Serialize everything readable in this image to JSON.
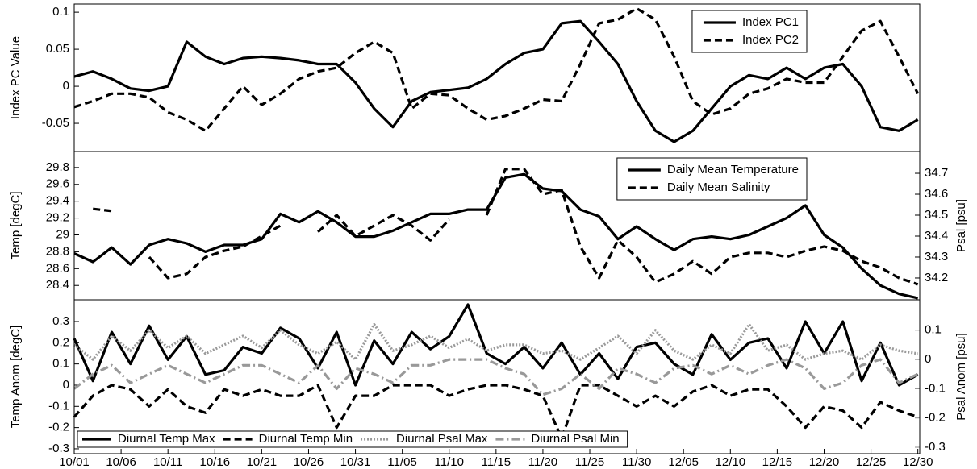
{
  "chart_data": [
    {
      "type": "line",
      "ylabel": "Index PC Value",
      "x": [
        0,
        2,
        4,
        6,
        8,
        10,
        12,
        14,
        16,
        18,
        20,
        22,
        24,
        26,
        28,
        30,
        32,
        34,
        36,
        38,
        40,
        42,
        44,
        46,
        48,
        50,
        52,
        54,
        56,
        58,
        60,
        62,
        64,
        66,
        68,
        70,
        72,
        74,
        76,
        78,
        80,
        82,
        84,
        86,
        88,
        90
      ],
      "xlim": [
        0,
        90.2
      ],
      "ylim": [
        -0.088,
        0.111
      ],
      "yticks": [
        -0.05,
        0,
        0.05,
        0.1
      ],
      "legend": "upper right",
      "series": [
        {
          "name": "Index PC1",
          "color": "#000000",
          "dash": "solid",
          "values": [
            0.013,
            0.02,
            0.01,
            -0.003,
            -0.006,
            0,
            0.06,
            0.04,
            0.03,
            0.038,
            0.04,
            0.038,
            0.035,
            0.03,
            0.03,
            0.005,
            -0.03,
            -0.055,
            -0.02,
            -0.008,
            -0.005,
            -0.002,
            0.01,
            0.03,
            0.045,
            0.05,
            0.085,
            0.088,
            0.06,
            0.03,
            -0.02,
            -0.06,
            -0.075,
            -0.06,
            -0.03,
            0,
            0.015,
            0.01,
            0.025,
            0.01,
            0.025,
            0.03,
            0,
            -0.055,
            -0.06,
            -0.045
          ]
        },
        {
          "name": "Index PC2",
          "color": "#000000",
          "dash": "dashed",
          "values": [
            -0.028,
            -0.02,
            -0.01,
            -0.01,
            -0.015,
            -0.035,
            -0.045,
            -0.06,
            -0.03,
            0,
            -0.025,
            -0.01,
            0.01,
            0.02,
            0.025,
            0.045,
            0.06,
            0.045,
            -0.03,
            -0.01,
            -0.012,
            -0.03,
            -0.045,
            -0.04,
            -0.03,
            -0.018,
            -0.02,
            0.03,
            0.085,
            0.09,
            0.105,
            0.09,
            0.04,
            -0.02,
            -0.038,
            -0.03,
            -0.01,
            -0.003,
            0.01,
            0.005,
            0.005,
            0.04,
            0.075,
            0.088,
            0.04,
            -0.01
          ]
        }
      ]
    },
    {
      "type": "line",
      "ylabel": "Temp [degC]",
      "y2label": "Psal [psu]",
      "x": [
        0,
        2,
        4,
        6,
        8,
        10,
        12,
        14,
        16,
        18,
        20,
        22,
        24,
        26,
        28,
        30,
        32,
        34,
        36,
        38,
        40,
        42,
        44,
        46,
        48,
        50,
        52,
        54,
        56,
        58,
        60,
        62,
        64,
        66,
        68,
        70,
        72,
        74,
        76,
        78,
        80,
        82,
        84,
        86,
        88,
        90
      ],
      "xlim": [
        0,
        90.2
      ],
      "ylim": [
        28.23,
        29.99
      ],
      "yticks": [
        28.4,
        28.6,
        28.8,
        29,
        29.2,
        29.4,
        29.6,
        29.8
      ],
      "y2lim": [
        34.096,
        34.804
      ],
      "y2ticks": [
        34.2,
        34.3,
        34.4,
        34.5,
        34.6,
        34.7
      ],
      "legend": "upper right",
      "series": [
        {
          "name": "Daily Mean Temperature",
          "color": "#000000",
          "dash": "solid",
          "values": [
            28.78,
            28.68,
            28.85,
            28.65,
            28.88,
            28.95,
            28.9,
            28.8,
            28.88,
            28.88,
            28.95,
            29.25,
            29.15,
            29.28,
            29.15,
            28.98,
            28.98,
            29.05,
            29.15,
            29.25,
            29.25,
            29.3,
            29.3,
            29.68,
            29.72,
            29.55,
            29.52,
            29.3,
            29.22,
            28.95,
            29.1,
            28.95,
            28.82,
            28.95,
            28.98,
            28.95,
            29,
            29.1,
            29.2,
            29.35,
            29,
            28.85,
            28.6,
            28.4,
            28.3,
            28.25
          ]
        },
        {
          "name": "Daily Mean Salinity",
          "color": "#000000",
          "dash": "dashed",
          "axis": "y2",
          "values": [
            null,
            34.53,
            34.52,
            null,
            34.3,
            34.2,
            34.22,
            34.3,
            34.33,
            34.35,
            34.4,
            34.45,
            null,
            34.42,
            34.5,
            34.4,
            34.45,
            34.5,
            34.45,
            34.38,
            34.48,
            null,
            34.5,
            34.72,
            34.72,
            34.6,
            34.62,
            34.35,
            34.2,
            34.38,
            34.3,
            34.18,
            34.22,
            34.28,
            34.22,
            34.3,
            34.32,
            34.32,
            34.3,
            34.33,
            34.35,
            34.33,
            34.28,
            34.25,
            34.2,
            34.17
          ]
        }
      ]
    },
    {
      "type": "line",
      "ylabel": "Temp Anom [degC]",
      "y2label": "Psal Anom [psu]",
      "y2color": "#888888",
      "x": [
        0,
        2,
        4,
        6,
        8,
        10,
        12,
        14,
        16,
        18,
        20,
        22,
        24,
        26,
        28,
        30,
        32,
        34,
        36,
        38,
        40,
        42,
        44,
        46,
        48,
        50,
        52,
        54,
        56,
        58,
        60,
        62,
        64,
        66,
        68,
        70,
        72,
        74,
        76,
        78,
        80,
        82,
        84,
        86,
        88,
        90
      ],
      "xlim": [
        0,
        90.2
      ],
      "xticks": [
        {
          "value": 0,
          "label": "10/01"
        },
        {
          "value": 5,
          "label": "10/06"
        },
        {
          "value": 10,
          "label": "10/11"
        },
        {
          "value": 15,
          "label": "10/16"
        },
        {
          "value": 20,
          "label": "10/21"
        },
        {
          "value": 25,
          "label": "10/26"
        },
        {
          "value": 30,
          "label": "10/31"
        },
        {
          "value": 35,
          "label": "11/05"
        },
        {
          "value": 40,
          "label": "11/10"
        },
        {
          "value": 45,
          "label": "11/15"
        },
        {
          "value": 50,
          "label": "11/20"
        },
        {
          "value": 55,
          "label": "11/25"
        },
        {
          "value": 60,
          "label": "11/30"
        },
        {
          "value": 65,
          "label": "12/05"
        },
        {
          "value": 70,
          "label": "12/10"
        },
        {
          "value": 75,
          "label": "12/15"
        },
        {
          "value": 80,
          "label": "12/20"
        },
        {
          "value": 85,
          "label": "12/25"
        },
        {
          "value": 90,
          "label": "12/30"
        }
      ],
      "ylim": [
        -0.323,
        0.4025
      ],
      "yticks": [
        -0.3,
        -0.2,
        -0.1,
        0,
        0.1,
        0.2,
        0.3
      ],
      "y2lim": [
        -0.322,
        0.204
      ],
      "y2ticks": [
        -0.3,
        -0.2,
        -0.1,
        0,
        0.1
      ],
      "legend": "lower left",
      "series": [
        {
          "name": "Diurnal Temp Max",
          "color": "#000000",
          "dash": "solid",
          "values": [
            0.22,
            0.02,
            0.25,
            0.1,
            0.28,
            0.12,
            0.23,
            0.05,
            0.07,
            0.18,
            0.15,
            0.27,
            0.22,
            0.08,
            0.25,
            0,
            0.21,
            0.1,
            0.25,
            0.17,
            0.23,
            0.38,
            0.15,
            0.1,
            0.18,
            0.08,
            0.2,
            0.05,
            0.15,
            0.03,
            0.18,
            0.2,
            0.1,
            0.05,
            0.24,
            0.12,
            0.2,
            0.22,
            0.08,
            0.3,
            0.15,
            0.3,
            0.02,
            0.2,
            0,
            0.05
          ]
        },
        {
          "name": "Diurnal Temp Min",
          "color": "#000000",
          "dash": "dashed",
          "values": [
            -0.15,
            -0.05,
            0,
            -0.02,
            -0.1,
            -0.02,
            -0.1,
            -0.13,
            -0.02,
            -0.05,
            -0.02,
            -0.05,
            -0.05,
            0,
            -0.2,
            -0.05,
            -0.05,
            0,
            0,
            0,
            -0.05,
            -0.02,
            0,
            0,
            -0.02,
            -0.05,
            -0.25,
            0,
            0,
            -0.05,
            -0.1,
            -0.05,
            -0.1,
            -0.03,
            0,
            -0.05,
            -0.02,
            -0.02,
            -0.1,
            -0.2,
            -0.1,
            -0.12,
            -0.2,
            -0.08,
            -0.12,
            -0.15
          ]
        },
        {
          "name": "Diurnal Psal Max",
          "color": "#999999",
          "dash": "dotted",
          "axis": "y2",
          "values": [
            0.05,
            0,
            0.08,
            0.03,
            0.1,
            0.04,
            0.08,
            0.02,
            0.05,
            0.08,
            0.04,
            0.1,
            0.05,
            0.02,
            0.06,
            0,
            0.12,
            0.03,
            0.05,
            0.08,
            0.04,
            0.07,
            0.03,
            0.05,
            0.05,
            0.02,
            0.03,
            0,
            0.04,
            0.08,
            0.02,
            0.1,
            0.03,
            0,
            0.05,
            0.02,
            0.12,
            0.03,
            0.05,
            0,
            0.02,
            0.03,
            0,
            0.05,
            0.03,
            0.02
          ]
        },
        {
          "name": "Diurnal Psal Min",
          "color": "#999999",
          "dash": "dashdot",
          "axis": "y2",
          "values": [
            -0.1,
            -0.05,
            -0.02,
            -0.08,
            -0.05,
            -0.02,
            -0.05,
            -0.08,
            -0.05,
            -0.02,
            -0.02,
            -0.05,
            -0.08,
            -0.02,
            -0.1,
            -0.03,
            -0.05,
            -0.08,
            -0.02,
            -0.02,
            0,
            0,
            0,
            -0.03,
            -0.05,
            -0.12,
            -0.1,
            -0.05,
            -0.1,
            -0.03,
            -0.05,
            -0.08,
            -0.03,
            -0.02,
            -0.05,
            -0.02,
            -0.05,
            -0.02,
            0,
            -0.03,
            -0.1,
            -0.08,
            -0.02,
            0,
            -0.08,
            -0.05
          ]
        }
      ]
    }
  ]
}
